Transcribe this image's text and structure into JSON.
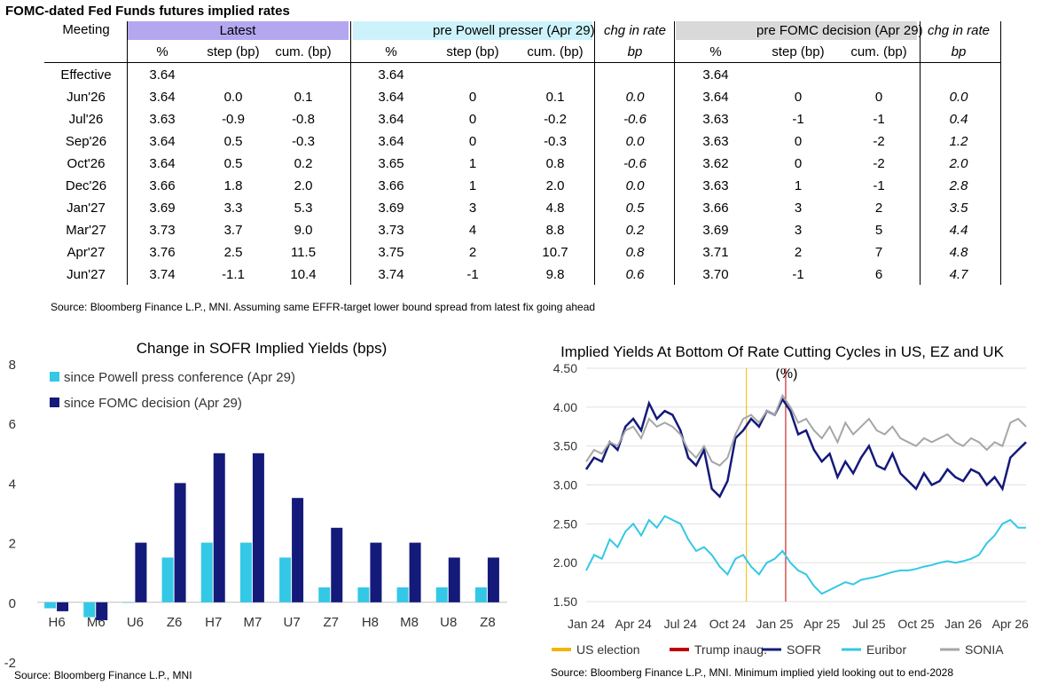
{
  "table": {
    "title": "FOMC-dated Fed Funds futures implied rates",
    "meeting_label": "Meeting",
    "groups": [
      "Latest",
      "pre Powell presser (Apr 29)",
      "chg in rate",
      "pre FOMC decision (Apr 29)",
      "chg in rate"
    ],
    "subheaders": [
      "%",
      "step (bp)",
      "cum. (bp)",
      "%",
      "step (bp)",
      "cum. (bp)",
      "bp",
      "%",
      "step (bp)",
      "cum. (bp)",
      "bp"
    ],
    "rows": [
      [
        "Effective",
        "3.64",
        "",
        "",
        "3.64",
        "",
        "",
        "",
        "3.64",
        "",
        "",
        ""
      ],
      [
        "Jun'26",
        "3.64",
        "0.0",
        "0.1",
        "3.64",
        "0",
        "0.1",
        "0.0",
        "3.64",
        "0",
        "0",
        "0.0"
      ],
      [
        "Jul'26",
        "3.63",
        "-0.9",
        "-0.8",
        "3.64",
        "0",
        "-0.2",
        "-0.6",
        "3.63",
        "-1",
        "-1",
        "0.4"
      ],
      [
        "Sep'26",
        "3.64",
        "0.5",
        "-0.3",
        "3.64",
        "0",
        "-0.3",
        "0.0",
        "3.63",
        "0",
        "-2",
        "1.2"
      ],
      [
        "Oct'26",
        "3.64",
        "0.5",
        "0.2",
        "3.65",
        "1",
        "0.8",
        "-0.6",
        "3.62",
        "0",
        "-2",
        "2.0"
      ],
      [
        "Dec'26",
        "3.66",
        "1.8",
        "2.0",
        "3.66",
        "1",
        "2.0",
        "0.0",
        "3.63",
        "1",
        "-1",
        "2.8"
      ],
      [
        "Jan'27",
        "3.69",
        "3.3",
        "5.3",
        "3.69",
        "3",
        "4.8",
        "0.5",
        "3.66",
        "3",
        "2",
        "3.5"
      ],
      [
        "Mar'27",
        "3.73",
        "3.7",
        "9.0",
        "3.73",
        "4",
        "8.8",
        "0.2",
        "3.69",
        "3",
        "5",
        "4.4"
      ],
      [
        "Apr'27",
        "3.76",
        "2.5",
        "11.5",
        "3.75",
        "2",
        "10.7",
        "0.8",
        "3.71",
        "2",
        "7",
        "4.8"
      ],
      [
        "Jun'27",
        "3.74",
        "-1.1",
        "10.4",
        "3.74",
        "-1",
        "9.8",
        "0.6",
        "3.70",
        "-1",
        "6",
        "4.7"
      ]
    ],
    "source": "Source: Bloomberg Finance L.P., MNI. Assuming same  EFFR-target lower bound spread from latest fix going ahead",
    "colors": {
      "latest": "#b4a7f0",
      "powell": "#ccf3fb",
      "fomc": "#d9d9d9"
    }
  },
  "chart_data": [
    {
      "type": "bar",
      "title": "Change in SOFR Implied Yields (bps)",
      "categories": [
        "H6",
        "M6",
        "U6",
        "Z6",
        "H7",
        "M7",
        "U7",
        "Z7",
        "H8",
        "M8",
        "U8",
        "Z8"
      ],
      "series": [
        {
          "name": "since Powell press conference (Apr 29)",
          "color": "#33c8e6",
          "values": [
            -0.2,
            -0.5,
            0,
            1.5,
            2,
            2,
            1.5,
            0.5,
            0.5,
            0.5,
            0.5,
            0.5
          ]
        },
        {
          "name": "since FOMC decision (Apr 29)",
          "color": "#141a7a",
          "values": [
            -0.3,
            -0.6,
            2,
            4,
            5,
            5,
            3.5,
            2.5,
            2,
            2,
            1.5,
            1.5
          ]
        }
      ],
      "ylim": [
        -2,
        8
      ],
      "yticks": [
        "8",
        "6",
        "4",
        "2",
        "0",
        "-2"
      ],
      "legend": "top-left",
      "source": "Source: Bloomberg Finance L.P., MNI"
    },
    {
      "type": "line",
      "title": "Implied Yields At Bottom Of Rate Cutting Cycles in US, EZ and UK",
      "subtitle": "(%)",
      "ylim": [
        1.5,
        4.5
      ],
      "yticks": [
        "4.50",
        "4.00",
        "3.50",
        "3.00",
        "2.50",
        "2.00",
        "1.50"
      ],
      "xticks": [
        "Jan 24",
        "Apr 24",
        "Jul 24",
        "Oct 24",
        "Jan 25",
        "Apr 25",
        "Jul 25",
        "Oct 25",
        "Jan 26",
        "Apr 26"
      ],
      "x_range_months": [
        0,
        28
      ],
      "markers": [
        {
          "name": "US election",
          "color": "#f5b400",
          "x_month": 10.2
        },
        {
          "name": "Trump inaug.",
          "color": "#c00000",
          "x_month": 12.7
        }
      ],
      "series": [
        {
          "name": "SOFR",
          "color": "#141a7a",
          "x": [
            0,
            0.5,
            1,
            1.5,
            2,
            2.5,
            3,
            3.5,
            4,
            4.5,
            5,
            5.5,
            6,
            6.5,
            7,
            7.5,
            8,
            8.5,
            9,
            9.5,
            10,
            10.5,
            11,
            11.5,
            12,
            12.5,
            13,
            13.5,
            14,
            14.5,
            15,
            15.5,
            16,
            16.5,
            17,
            17.5,
            18,
            18.5,
            19,
            19.5,
            20,
            20.5,
            21,
            21.5,
            22,
            22.5,
            23,
            23.5,
            24,
            24.5,
            25,
            25.5,
            26,
            26.5,
            27,
            27.5,
            28
          ],
          "values": [
            3.2,
            3.35,
            3.3,
            3.55,
            3.45,
            3.75,
            3.85,
            3.7,
            4.05,
            3.85,
            3.95,
            3.9,
            3.7,
            3.35,
            3.25,
            3.45,
            2.95,
            2.85,
            3.05,
            3.6,
            3.7,
            3.85,
            3.75,
            3.95,
            3.9,
            4.1,
            3.95,
            3.65,
            3.7,
            3.45,
            3.3,
            3.4,
            3.1,
            3.3,
            3.15,
            3.35,
            3.5,
            3.25,
            3.2,
            3.4,
            3.15,
            3.05,
            2.95,
            3.15,
            3.0,
            3.05,
            3.2,
            3.1,
            3.05,
            3.2,
            3.15,
            3.0,
            3.1,
            2.95,
            3.35,
            3.45,
            3.55
          ]
        },
        {
          "name": "Euribor",
          "color": "#33c8e6",
          "x": [
            0,
            0.5,
            1,
            1.5,
            2,
            2.5,
            3,
            3.5,
            4,
            4.5,
            5,
            5.5,
            6,
            6.5,
            7,
            7.5,
            8,
            8.5,
            9,
            9.5,
            10,
            10.5,
            11,
            11.5,
            12,
            12.5,
            13,
            13.5,
            14,
            14.5,
            15,
            15.5,
            16,
            16.5,
            17,
            17.5,
            18,
            18.5,
            19,
            19.5,
            20,
            20.5,
            21,
            21.5,
            22,
            22.5,
            23,
            23.5,
            24,
            24.5,
            25,
            25.5,
            26,
            26.5,
            27,
            27.5,
            28
          ],
          "values": [
            1.9,
            2.1,
            2.05,
            2.3,
            2.2,
            2.4,
            2.5,
            2.35,
            2.55,
            2.45,
            2.6,
            2.55,
            2.5,
            2.3,
            2.15,
            2.2,
            2.1,
            1.95,
            1.85,
            2.05,
            2.1,
            1.95,
            1.85,
            2.0,
            2.05,
            2.15,
            2.0,
            1.9,
            1.85,
            1.7,
            1.6,
            1.65,
            1.7,
            1.75,
            1.72,
            1.78,
            1.8,
            1.82,
            1.85,
            1.88,
            1.9,
            1.9,
            1.92,
            1.95,
            1.97,
            2.0,
            2.02,
            2.0,
            2.02,
            2.05,
            2.1,
            2.25,
            2.35,
            2.5,
            2.55,
            2.45,
            2.45
          ]
        },
        {
          "name": "SONIA",
          "color": "#a6a6a6",
          "x": [
            0,
            0.5,
            1,
            1.5,
            2,
            2.5,
            3,
            3.5,
            4,
            4.5,
            5,
            5.5,
            6,
            6.5,
            7,
            7.5,
            8,
            8.5,
            9,
            9.5,
            10,
            10.5,
            11,
            11.5,
            12,
            12.5,
            13,
            13.5,
            14,
            14.5,
            15,
            15.5,
            16,
            16.5,
            17,
            17.5,
            18,
            18.5,
            19,
            19.5,
            20,
            20.5,
            21,
            21.5,
            22,
            22.5,
            23,
            23.5,
            24,
            24.5,
            25,
            25.5,
            26,
            26.5,
            27,
            27.5,
            28
          ],
          "values": [
            3.3,
            3.45,
            3.4,
            3.55,
            3.5,
            3.7,
            3.75,
            3.6,
            3.85,
            3.75,
            3.8,
            3.75,
            3.65,
            3.45,
            3.35,
            3.5,
            3.3,
            3.25,
            3.35,
            3.65,
            3.85,
            3.9,
            3.8,
            3.95,
            3.9,
            4.15,
            4.0,
            3.8,
            3.85,
            3.7,
            3.6,
            3.75,
            3.55,
            3.8,
            3.65,
            3.75,
            3.85,
            3.7,
            3.65,
            3.75,
            3.6,
            3.55,
            3.5,
            3.6,
            3.55,
            3.6,
            3.65,
            3.55,
            3.5,
            3.6,
            3.55,
            3.45,
            3.55,
            3.5,
            3.8,
            3.85,
            3.75
          ]
        }
      ],
      "legend": "bottom",
      "source": "Source: Bloomberg Finance L.P., MNI. Minimum implied yield looking out to end-2028"
    }
  ]
}
